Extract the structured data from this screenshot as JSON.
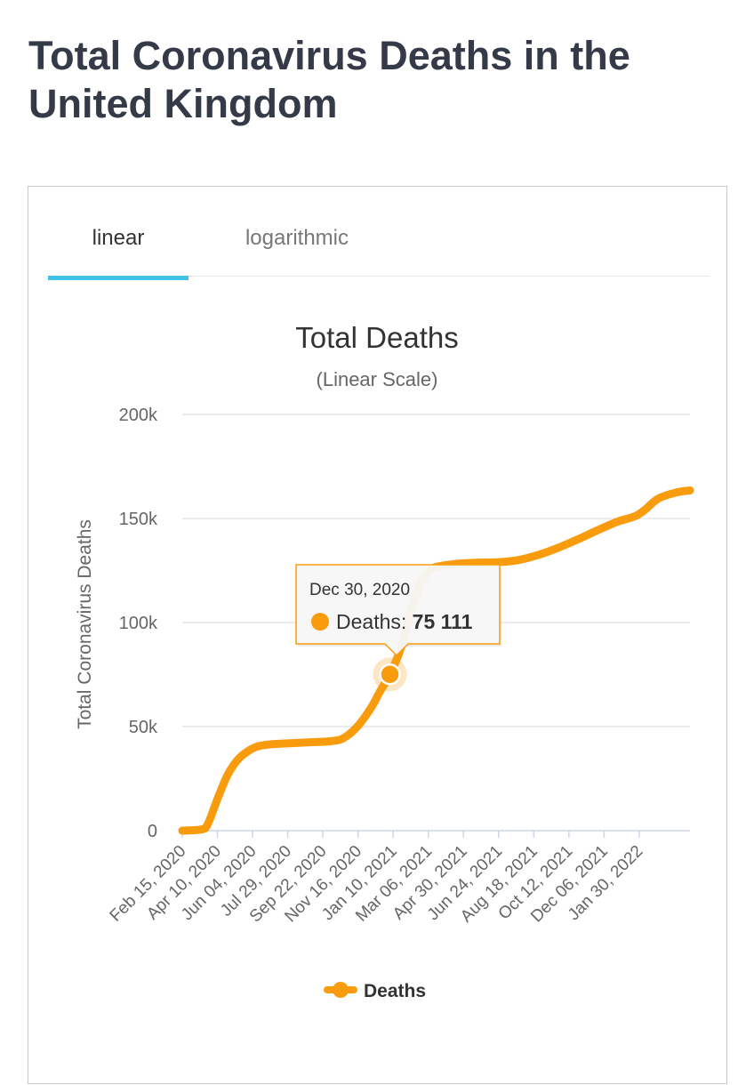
{
  "page": {
    "title": "Total Coronavirus Deaths in the United Kingdom"
  },
  "tabs": [
    {
      "label": "linear",
      "active": true
    },
    {
      "label": "logarithmic",
      "active": false
    }
  ],
  "colors": {
    "series": "#f89c0e",
    "tab_accent": "#3fc1e8",
    "title_text": "#343a47",
    "grid": "#e6e6e6",
    "axis_line": "#ccd6eb"
  },
  "chart_data": {
    "type": "line",
    "title": "Total Deaths",
    "subtitle": "(Linear Scale)",
    "ylabel": "Total Coronavirus Deaths",
    "xlabel": "",
    "ylim": [
      0,
      200000
    ],
    "yticks": [
      0,
      50000,
      100000,
      150000,
      200000
    ],
    "ytick_labels": [
      "0",
      "50k",
      "100k",
      "150k",
      "200k"
    ],
    "xtick_labels": [
      "Feb 15, 2020",
      "Apr 10, 2020",
      "Jun 04, 2020",
      "Jul 29, 2020",
      "Sep 22, 2020",
      "Nov 16, 2020",
      "Jan 10, 2021",
      "Mar 06, 2021",
      "Apr 30, 2021",
      "Jun 24, 2021",
      "Aug 18, 2021",
      "Oct 12, 2021",
      "Dec 06, 2021",
      "Jan 30, 2022"
    ],
    "xlim": [
      "2020-02-15",
      "2022-04-05"
    ],
    "grid": true,
    "legend": "bottom",
    "series": [
      {
        "name": "Deaths",
        "color": "#f89c0e",
        "x": [
          "2020-02-15",
          "2020-03-15",
          "2020-03-25",
          "2020-04-10",
          "2020-04-25",
          "2020-05-10",
          "2020-05-25",
          "2020-06-10",
          "2020-07-01",
          "2020-07-29",
          "2020-09-01",
          "2020-10-01",
          "2020-10-20",
          "2020-11-10",
          "2020-12-01",
          "2020-12-15",
          "2020-12-30",
          "2021-01-15",
          "2021-02-01",
          "2021-02-15",
          "2021-03-01",
          "2021-03-15",
          "2021-04-15",
          "2021-05-15",
          "2021-06-15",
          "2021-07-15",
          "2021-08-15",
          "2021-09-15",
          "2021-10-15",
          "2021-11-15",
          "2021-12-15",
          "2022-01-10",
          "2022-01-25",
          "2022-02-15",
          "2022-03-15",
          "2022-04-05"
        ],
        "y": [
          0,
          600,
          3000,
          16000,
          27000,
          34000,
          38000,
          40500,
          41500,
          42000,
          42500,
          43000,
          44500,
          50000,
          59000,
          67000,
          75111,
          87000,
          106000,
          119000,
          125000,
          127000,
          128300,
          128800,
          129000,
          130000,
          132500,
          136000,
          140000,
          144500,
          148500,
          151000,
          154000,
          159500,
          162500,
          163500
        ]
      }
    ],
    "tooltip": {
      "date": "Dec 30, 2020",
      "series": "Deaths",
      "value": 75111,
      "value_label": "75 111"
    }
  }
}
